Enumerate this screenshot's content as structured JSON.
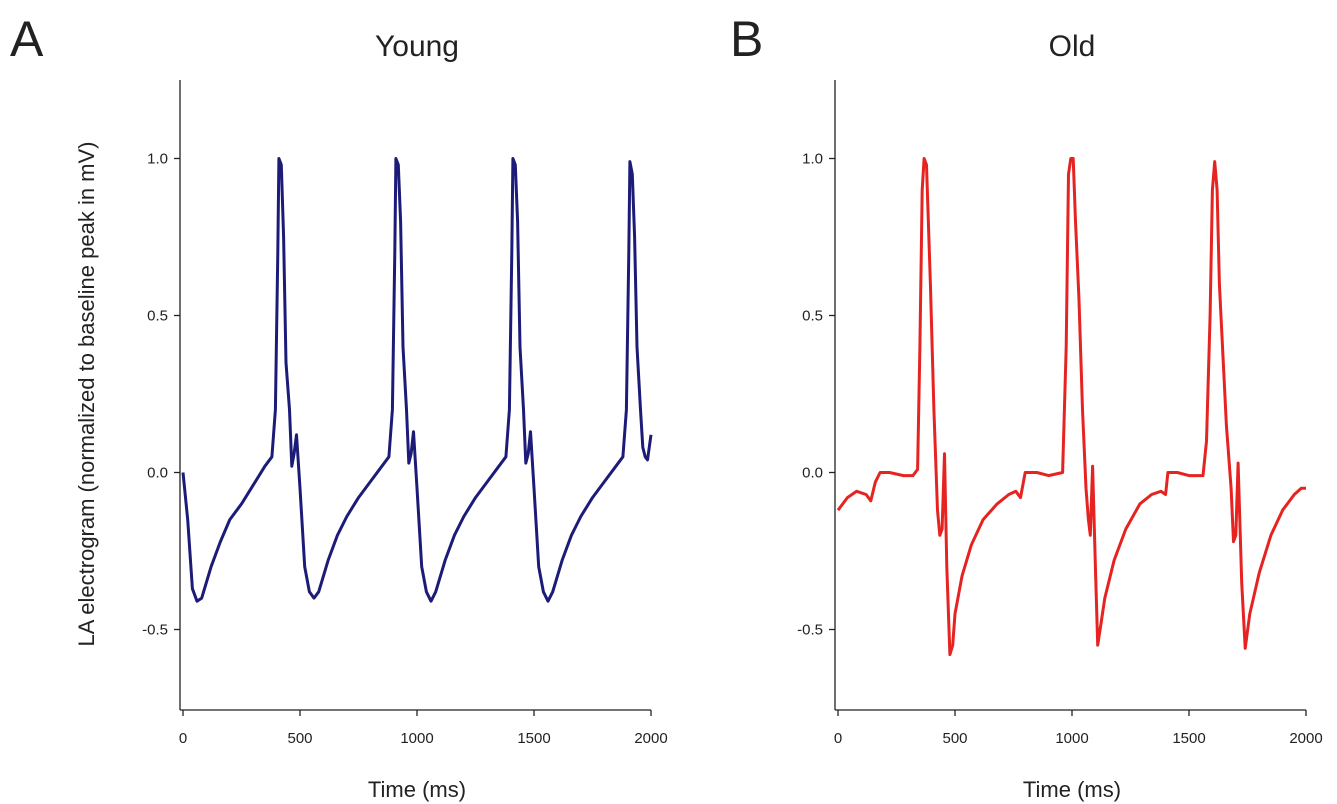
{
  "chart_data": [
    {
      "type": "line",
      "panel_label": "A",
      "title": "Young",
      "xlabel": "Time (ms)",
      "ylabel": "LA electrogram (normalized to baseline peak in mV)",
      "xlim": [
        0,
        2000
      ],
      "ylim": [
        -0.75,
        1.25
      ],
      "xticks": [
        0,
        500,
        1000,
        1500,
        2000
      ],
      "yticks": [
        {
          "value": 1.0,
          "label": "1.0"
        },
        0.5,
        {
          "value": 0.0,
          "label": "0.0"
        },
        -0.5
      ],
      "x": [
        0,
        20,
        40,
        60,
        80,
        120,
        160,
        200,
        250,
        300,
        350,
        380,
        395,
        405,
        410,
        420,
        430,
        440,
        455,
        465,
        475,
        485,
        500,
        520,
        540,
        560,
        580,
        620,
        660,
        700,
        750,
        800,
        850,
        880,
        895,
        905,
        910,
        920,
        930,
        940,
        955,
        965,
        975,
        985,
        1000,
        1020,
        1040,
        1060,
        1080,
        1120,
        1160,
        1200,
        1250,
        1300,
        1350,
        1380,
        1395,
        1405,
        1410,
        1420,
        1430,
        1440,
        1455,
        1465,
        1475,
        1485,
        1500,
        1520,
        1540,
        1560,
        1580,
        1620,
        1660,
        1700,
        1750,
        1800,
        1850,
        1880,
        1895,
        1905,
        1910,
        1920,
        1930,
        1940,
        1955,
        1965,
        1975,
        1985,
        2000
      ],
      "series": [
        {
          "name": "Young",
          "color": "#1c1c78",
          "values": [
            0,
            -0.15,
            -0.37,
            -0.41,
            -0.4,
            -0.3,
            -0.22,
            -0.15,
            -0.1,
            -0.04,
            0.02,
            0.05,
            0.2,
            0.7,
            1.0,
            0.98,
            0.75,
            0.35,
            0.2,
            0.02,
            0.06,
            0.12,
            -0.05,
            -0.3,
            -0.38,
            -0.4,
            -0.38,
            -0.28,
            -0.2,
            -0.14,
            -0.08,
            -0.03,
            0.02,
            0.05,
            0.2,
            0.7,
            1.0,
            0.98,
            0.8,
            0.4,
            0.2,
            0.03,
            0.06,
            0.13,
            -0.05,
            -0.3,
            -0.38,
            -0.41,
            -0.38,
            -0.28,
            -0.2,
            -0.14,
            -0.08,
            -0.03,
            0.02,
            0.05,
            0.2,
            0.7,
            1.0,
            0.98,
            0.8,
            0.4,
            0.2,
            0.03,
            0.06,
            0.13,
            -0.05,
            -0.3,
            -0.38,
            -0.41,
            -0.38,
            -0.28,
            -0.2,
            -0.14,
            -0.08,
            -0.03,
            0.02,
            0.05,
            0.2,
            0.7,
            0.99,
            0.95,
            0.75,
            0.4,
            0.2,
            0.08,
            0.05,
            0.04,
            0.12
          ]
        }
      ]
    },
    {
      "type": "line",
      "panel_label": "B",
      "title": "Old",
      "xlabel": "Time (ms)",
      "xlim": [
        0,
        2000
      ],
      "ylim": [
        -0.75,
        1.25
      ],
      "xticks": [
        0,
        500,
        1000,
        1500,
        2000
      ],
      "yticks": [
        {
          "value": 1.0,
          "label": "1.0"
        },
        0.5,
        {
          "value": 0.0,
          "label": "0.0"
        },
        -0.5
      ],
      "x": [
        0,
        40,
        80,
        120,
        140,
        160,
        180,
        220,
        280,
        320,
        340,
        350,
        360,
        368,
        378,
        395,
        410,
        425,
        435,
        445,
        455,
        465,
        478,
        490,
        500,
        530,
        570,
        620,
        680,
        730,
        760,
        780,
        800,
        850,
        900,
        960,
        975,
        985,
        995,
        1005,
        1015,
        1030,
        1045,
        1060,
        1070,
        1078,
        1088,
        1100,
        1110,
        1120,
        1140,
        1180,
        1230,
        1290,
        1340,
        1380,
        1400,
        1410,
        1450,
        1500,
        1560,
        1575,
        1590,
        1600,
        1610,
        1620,
        1630,
        1660,
        1680,
        1690,
        1700,
        1710,
        1725,
        1740,
        1760,
        1800,
        1850,
        1900,
        1950,
        1980,
        2000
      ],
      "series": [
        {
          "name": "Old",
          "color": "#e52421",
          "values": [
            -0.12,
            -0.08,
            -0.06,
            -0.07,
            -0.09,
            -0.03,
            0,
            0,
            -0.01,
            -0.01,
            0.01,
            0.4,
            0.9,
            1.0,
            0.98,
            0.6,
            0.2,
            -0.12,
            -0.2,
            -0.18,
            0.06,
            -0.3,
            -0.58,
            -0.55,
            -0.45,
            -0.33,
            -0.23,
            -0.15,
            -0.1,
            -0.07,
            -0.06,
            -0.08,
            0,
            0,
            -0.01,
            0,
            0.4,
            0.95,
            1.0,
            1.0,
            0.8,
            0.55,
            0.2,
            -0.05,
            -0.15,
            -0.2,
            0.02,
            -0.3,
            -0.55,
            -0.5,
            -0.4,
            -0.28,
            -0.18,
            -0.1,
            -0.07,
            -0.06,
            -0.07,
            0,
            0,
            -0.01,
            -0.01,
            0.1,
            0.5,
            0.9,
            0.99,
            0.9,
            0.6,
            0.15,
            -0.05,
            -0.22,
            -0.2,
            0.03,
            -0.35,
            -0.56,
            -0.45,
            -0.32,
            -0.2,
            -0.12,
            -0.07,
            -0.05,
            -0.05
          ]
        }
      ]
    }
  ]
}
